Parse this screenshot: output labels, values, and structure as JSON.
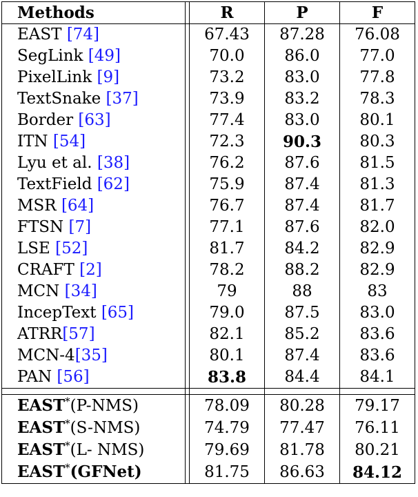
{
  "headers": {
    "methods": "Methods",
    "r": "R",
    "p": "P",
    "f": "F"
  },
  "rows": [
    {
      "name": "EAST ",
      "cite": "74",
      "r": "67.43",
      "p": "87.28",
      "f": "76.08"
    },
    {
      "name": "SegLink ",
      "cite": "49",
      "r": "70.0",
      "p": "86.0",
      "f": "77.0"
    },
    {
      "name": "PixelLink ",
      "cite": "9",
      "r": "73.2",
      "p": "83.0",
      "f": "77.8"
    },
    {
      "name": "TextSnake ",
      "cite": "37",
      "r": "73.9",
      "p": "83.2",
      "f": "78.3"
    },
    {
      "name": "Border ",
      "cite": "63",
      "r": "77.4",
      "p": "83.0",
      "f": "80.1"
    },
    {
      "name": "ITN ",
      "cite": "54",
      "r": "72.3",
      "p": "90.3",
      "f": "80.3",
      "bold": "p"
    },
    {
      "name": "Lyu et al. ",
      "cite": "38",
      "r": "76.2",
      "p": "87.6",
      "f": "81.5"
    },
    {
      "name": "TextField ",
      "cite": "62",
      "r": "75.9",
      "p": "87.4",
      "f": "81.3"
    },
    {
      "name": "MSR ",
      "cite": "64",
      "r": "76.7",
      "p": "87.4",
      "f": "81.7"
    },
    {
      "name": "FTSN ",
      "cite": "7",
      "r": "77.1",
      "p": "87.6",
      "f": "82.0"
    },
    {
      "name": "LSE ",
      "cite": "52",
      "r": "81.7",
      "p": "84.2",
      "f": "82.9"
    },
    {
      "name": "CRAFT ",
      "cite": "2",
      "r": "78.2",
      "p": "88.2",
      "f": "82.9"
    },
    {
      "name": "MCN ",
      "cite": "34",
      "r": "79",
      "p": "88",
      "f": "83"
    },
    {
      "name": "IncepText  ",
      "cite": "65",
      "r": "79.0",
      "p": "87.5",
      "f": "83.0"
    },
    {
      "name": "ATRR",
      "cite": "57",
      "r": "82.1",
      "p": "85.2",
      "f": "83.6"
    },
    {
      "name": "MCN-4",
      "cite": "35",
      "r": "80.1",
      "p": "87.4",
      "f": "83.6"
    },
    {
      "name": "PAN ",
      "cite": "56",
      "r": "83.8",
      "p": "84.4",
      "f": "84.1",
      "bold": "r"
    }
  ],
  "ours": [
    {
      "base": "EAST",
      "star": "*",
      "variant": "(P-NMS)",
      "r": "78.09",
      "p": "80.28",
      "f": "79.17"
    },
    {
      "base": "EAST",
      "star": "*",
      "variant": "(S-NMS)",
      "r": "74.79",
      "p": "77.47",
      "f": "76.11"
    },
    {
      "base": "EAST",
      "star": "*",
      "variant": "(L- NMS)",
      "r": "79.69",
      "p": "81.78",
      "f": "80.21"
    },
    {
      "base": "EAST",
      "star": "*",
      "variant": "(GFNet)",
      "r": "81.75",
      "p": "86.63",
      "f": "84.12",
      "bold_variant": true,
      "bold": "f"
    }
  ]
}
